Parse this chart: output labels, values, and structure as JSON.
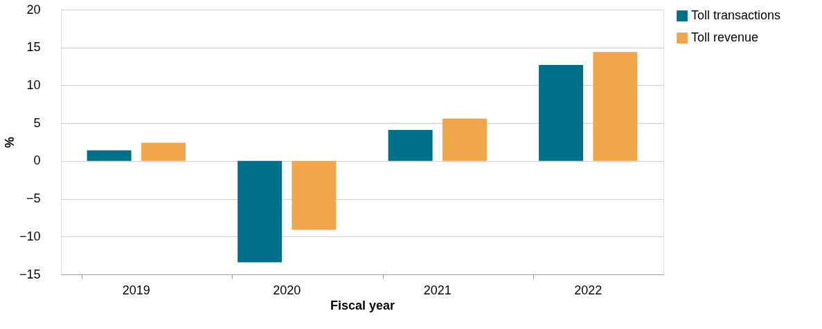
{
  "chart_data": {
    "type": "bar",
    "xlabel": "Fiscal year",
    "ylabel": "%",
    "categories": [
      "2019",
      "2020",
      "2021",
      "2022"
    ],
    "series": [
      {
        "name": "Toll transactions",
        "color": "#006f89",
        "values": [
          1.4,
          -13.4,
          4.1,
          12.7
        ]
      },
      {
        "name": "Toll revenue",
        "color": "#f0a64a",
        "values": [
          2.4,
          -9.1,
          5.6,
          14.4
        ]
      }
    ],
    "ylim": [
      -15,
      20
    ],
    "yticks": [
      -15,
      -10,
      -5,
      0,
      5,
      10,
      15,
      20
    ],
    "grid": "y",
    "legend": "top right"
  }
}
